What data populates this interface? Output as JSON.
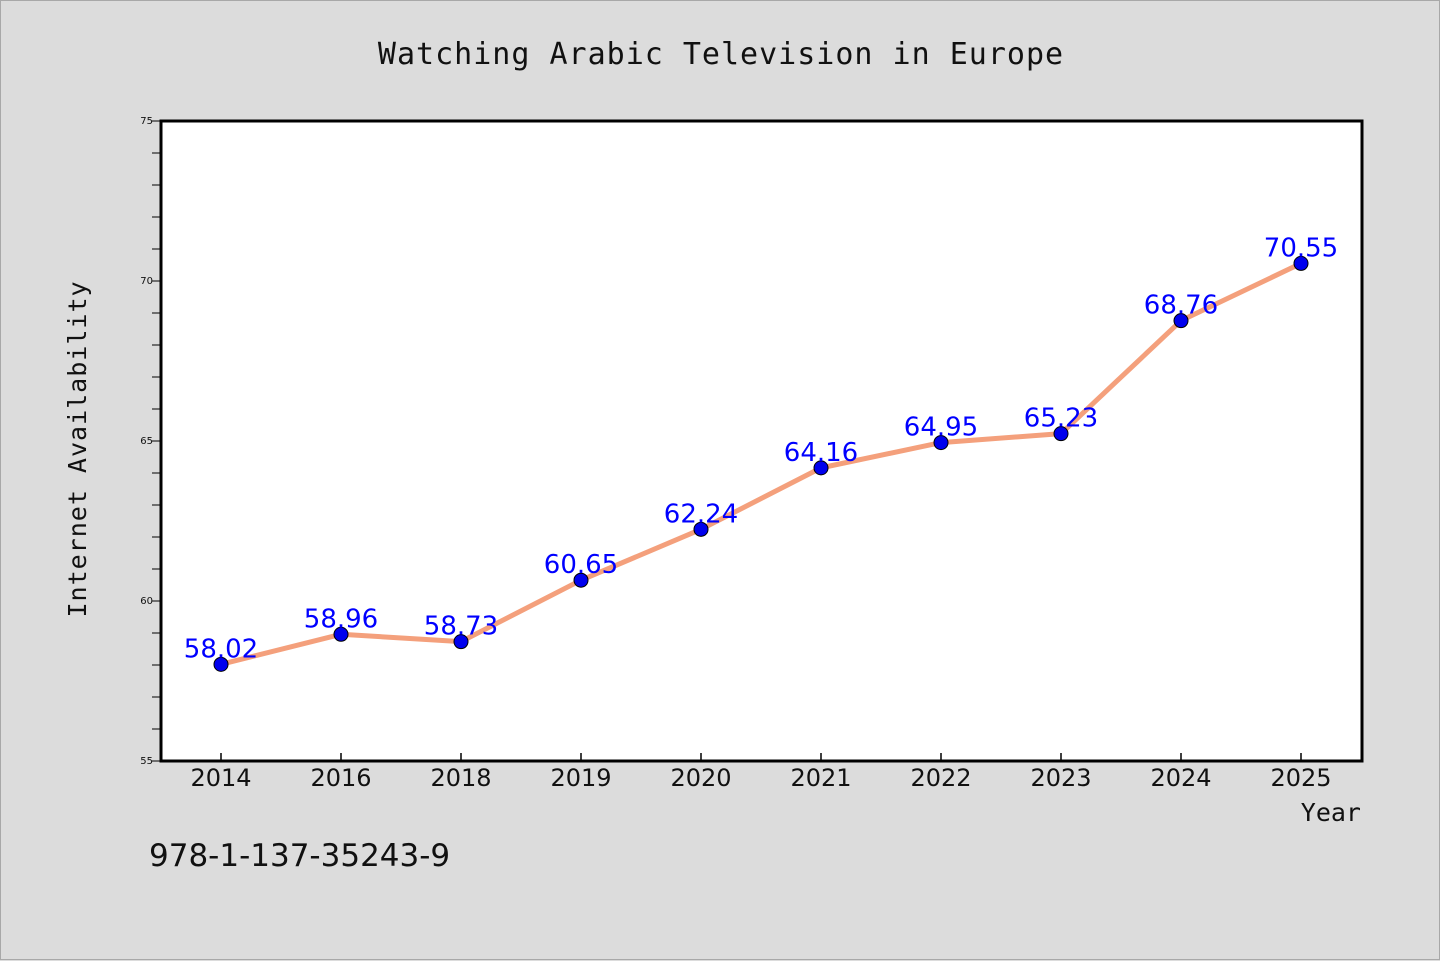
{
  "chart_data": {
    "type": "line",
    "title": "Watching Arabic Television in Europe",
    "xlabel": "Year",
    "ylabel": "Internet Availability",
    "categories": [
      "2014",
      "2016",
      "2018",
      "2019",
      "2020",
      "2021",
      "2022",
      "2023",
      "2024",
      "2025"
    ],
    "series": [
      {
        "values": [
          58.02,
          58.96,
          58.73,
          60.65,
          62.24,
          64.16,
          64.95,
          65.23,
          68.76,
          70.55
        ],
        "labels": [
          "58.02",
          "58.96",
          "58.73",
          "60.65",
          "62.24",
          "64.16",
          "64.95",
          "65.23",
          "68.76",
          "70.55"
        ]
      }
    ],
    "ylim": [
      55,
      75
    ],
    "yticks": [
      "55",
      "60",
      "65",
      "70",
      "75"
    ],
    "grid": false,
    "line_color": "#f4a07c",
    "marker_color": "#0000ee",
    "label_color": "#0000ff"
  },
  "annotation": "978-1-137-35243-9"
}
